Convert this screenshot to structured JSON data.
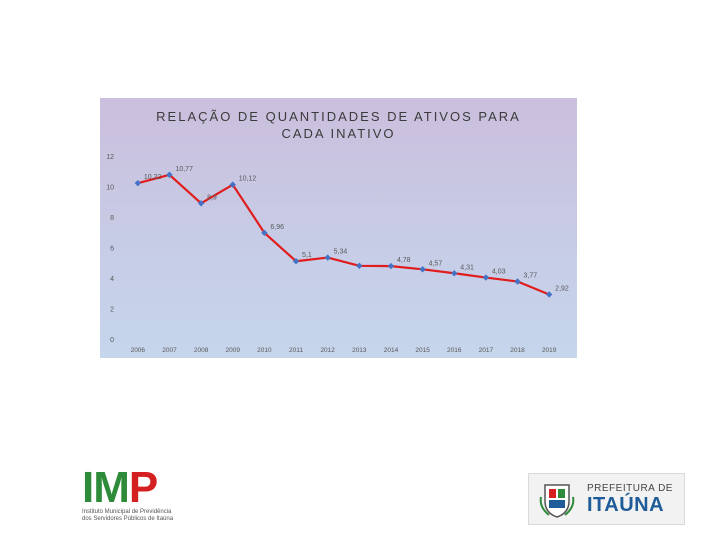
{
  "chart_data": {
    "type": "line",
    "title": "RELAÇÃO DE QUANTIDADES DE ATIVOS PARA CADA INATIVO",
    "title_lines": [
      "RELAÇÃO DE QUANTIDADES DE ATIVOS PARA",
      "CADA INATIVO"
    ],
    "categories": [
      "2006",
      "2007",
      "2008",
      "2009",
      "2010",
      "2011",
      "2012",
      "2013",
      "2014",
      "2015",
      "2016",
      "2017",
      "2018",
      "2019"
    ],
    "values": [
      10.22,
      10.77,
      8.9,
      10.12,
      6.96,
      5.1,
      5.34,
      4.8,
      4.78,
      4.57,
      4.31,
      4.03,
      3.77,
      2.92
    ],
    "value_labels": [
      "10,22",
      "10,77",
      "8,9",
      "10,12",
      "6,96",
      "5,1",
      "5,34",
      "",
      "4,78",
      "4,57",
      "4,31",
      "4,03",
      "3,77",
      "2,92"
    ],
    "yticks": [
      "0",
      "2",
      "4",
      "6",
      "8",
      "10",
      "12"
    ],
    "ylim": [
      0,
      12
    ],
    "xlabel": "",
    "ylabel": "",
    "grid": false,
    "legend": "none",
    "line_color": "#e01c1c",
    "marker_color": "#4472c4",
    "label_color": "#595959"
  },
  "logos": {
    "imp": {
      "letters": "IMP",
      "caption": [
        "Instituto Municipal de Previdência",
        "dos Servidores Públicos de Itaúna"
      ],
      "colors": {
        "I": "#2e8b3a",
        "M": "#2e8b3a",
        "P": "#d42020"
      }
    },
    "prefeitura": {
      "line1": "PREFEITURA DE",
      "line2": "ITAÚNA",
      "crest_icon": "city-crest-icon"
    }
  }
}
